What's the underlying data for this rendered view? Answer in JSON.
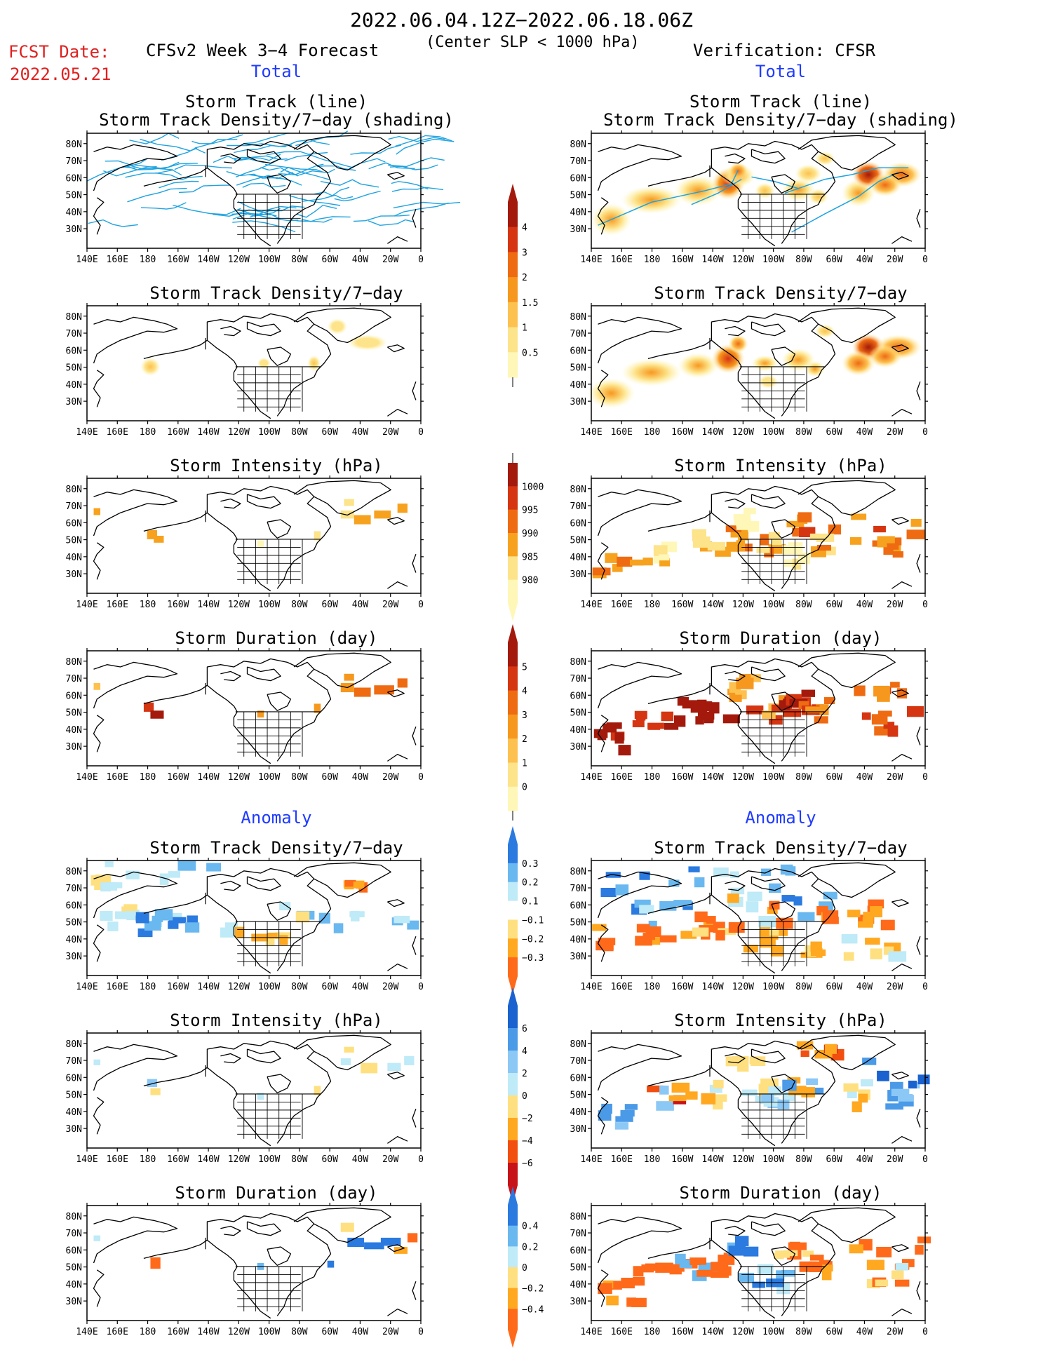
{
  "header": {
    "title": "2022.06.04.12Z−2022.06.18.06Z",
    "subtitle": "(Center SLP < 1000 hPa)",
    "fcst_label": "FCST Date:",
    "fcst_date": "2022.05.21",
    "model_label": "CFSv2 Week 3−4 Forecast",
    "verification_label": "Verification: CFSR"
  },
  "sections": {
    "total": "Total",
    "anomaly": "Anomaly"
  },
  "panel_titles": {
    "track_line": "Storm Track (line)",
    "track_shade": "Storm Track Density/7−day (shading)",
    "density": "Storm Track Density/7−day",
    "intensity": "Storm Intensity (hPa)",
    "duration": "Storm Duration (day)"
  },
  "axes": {
    "lon_ticks": [
      "140E",
      "160E",
      "180",
      "160W",
      "140W",
      "120W",
      "100W",
      "80W",
      "60W",
      "40W",
      "20W",
      "0"
    ],
    "lat_ticks": [
      "80N",
      "70N",
      "60N",
      "50N",
      "40N",
      "30N"
    ]
  },
  "colors": {
    "track_line": "#1fa3e0",
    "title_blue": "#1f3bff",
    "fcst_red": "#e02020"
  },
  "colorbars": {
    "density_total": {
      "labels": [
        "4",
        "3",
        "2",
        "1.5",
        "1",
        "0.5"
      ],
      "colors": [
        "#fff7b8",
        "#fde38a",
        "#fdc150",
        "#f7981e",
        "#ee6b12",
        "#d63512",
        "#a31a0c"
      ]
    },
    "intensity_total": {
      "labels": [
        "1000",
        "995",
        "990",
        "985",
        "980"
      ],
      "colors": [
        "#fff7b8",
        "#fde38a",
        "#f7a21e",
        "#ee6b12",
        "#d63512",
        "#a31a0c"
      ]
    },
    "duration_total": {
      "labels": [
        "5",
        "4",
        "3",
        "2",
        "1",
        "0"
      ],
      "colors": [
        "#fff7b8",
        "#fde38a",
        "#fdc150",
        "#f7981e",
        "#ee6b12",
        "#d63512",
        "#a31a0c"
      ]
    },
    "density_anom": {
      "labels": [
        "0.3",
        "0.2",
        "0.1",
        "−0.1",
        "−0.2",
        "−0.3"
      ],
      "colors": [
        "#ff6a1a",
        "#ffa820",
        "#ffe080",
        "#ffffff",
        "#bfeaf7",
        "#6ab8f0",
        "#2a7ae0"
      ]
    },
    "intensity_anom": {
      "labels": [
        "6",
        "4",
        "2",
        "0",
        "−2",
        "−4",
        "−6"
      ],
      "colors": [
        "#c8121a",
        "#f24e10",
        "#ffa820",
        "#ffe080",
        "#bfeaf7",
        "#8cc8f5",
        "#4a9ae8",
        "#1a62d0"
      ]
    },
    "duration_anom": {
      "labels": [
        "0.4",
        "0.2",
        "0",
        "−0.2",
        "−0.4"
      ],
      "colors": [
        "#ff6a1a",
        "#ffa820",
        "#ffe080",
        "#bfeaf7",
        "#6ab8f0",
        "#2a7ae0"
      ]
    }
  }
}
